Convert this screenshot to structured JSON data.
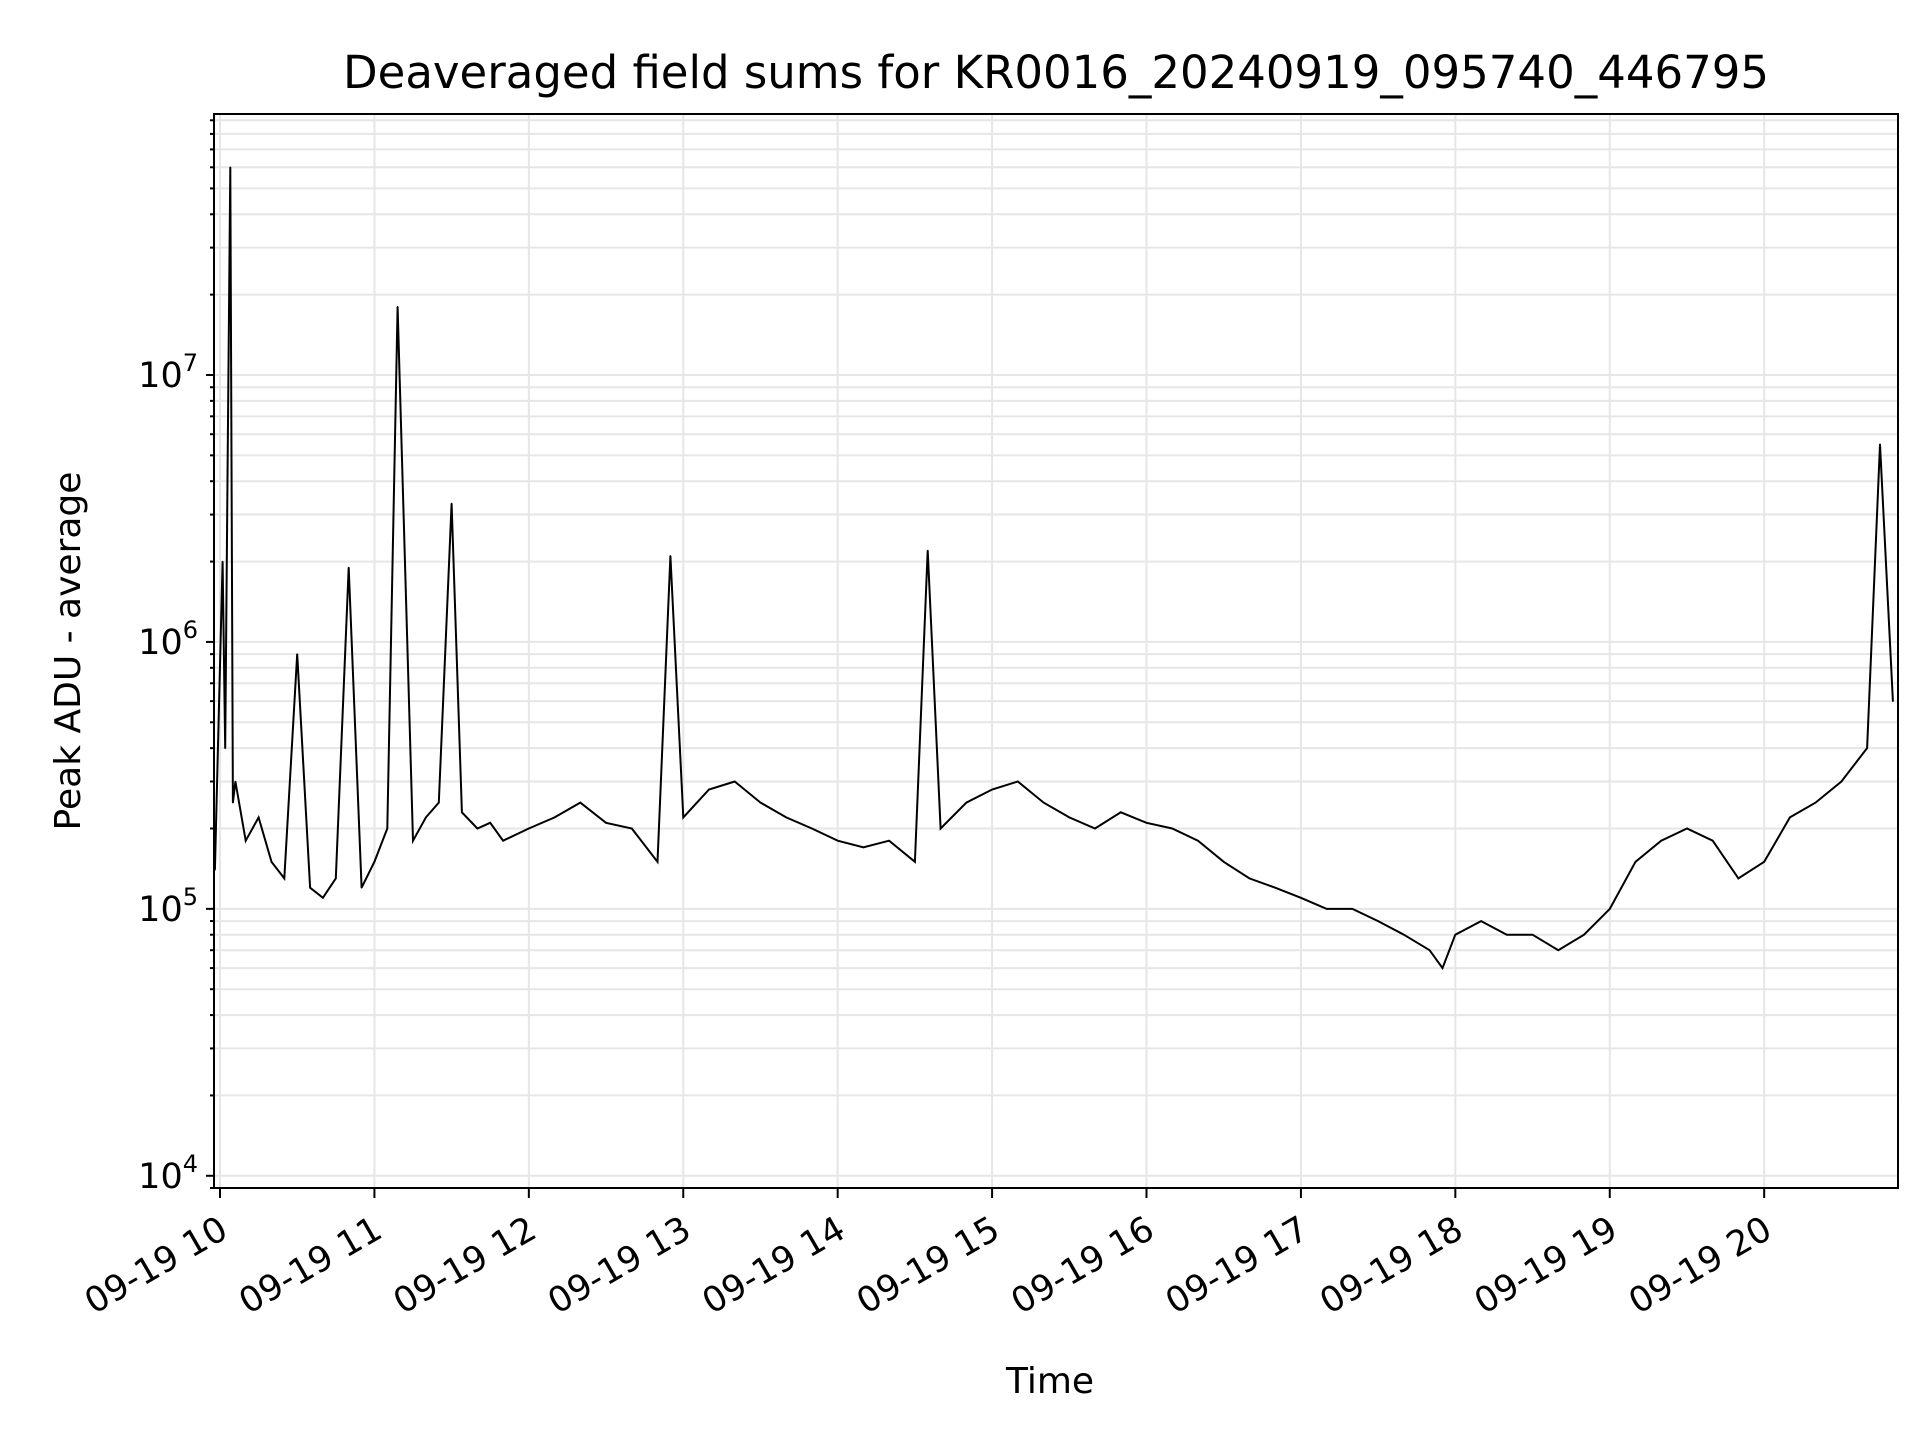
{
  "chart_data": {
    "type": "line",
    "title": "Deaveraged field sums for KR0016_20240919_095740_446795",
    "xlabel": "Time",
    "ylabel": "Peak ADU - average",
    "yscale": "log",
    "ylim": [
      9000,
      95000000
    ],
    "xlim": [
      "2024-09-19 09:57:40",
      "2024-09-19 20:52:00"
    ],
    "grid": true,
    "line_color": "#000000",
    "grid_color": "#e6e6e6",
    "x_ticks": [
      {
        "t": "2024-09-19 10:00",
        "label": "09-19 10"
      },
      {
        "t": "2024-09-19 11:00",
        "label": "09-19 11"
      },
      {
        "t": "2024-09-19 12:00",
        "label": "09-19 12"
      },
      {
        "t": "2024-09-19 13:00",
        "label": "09-19 13"
      },
      {
        "t": "2024-09-19 14:00",
        "label": "09-19 14"
      },
      {
        "t": "2024-09-19 15:00",
        "label": "09-19 15"
      },
      {
        "t": "2024-09-19 16:00",
        "label": "09-19 16"
      },
      {
        "t": "2024-09-19 17:00",
        "label": "09-19 17"
      },
      {
        "t": "2024-09-19 18:00",
        "label": "09-19 18"
      },
      {
        "t": "2024-09-19 19:00",
        "label": "09-19 19"
      },
      {
        "t": "2024-09-19 20:00",
        "label": "09-19 20"
      }
    ],
    "y_ticks": [
      {
        "value": 10000,
        "base": "10",
        "exp": "4"
      },
      {
        "value": 100000,
        "base": "10",
        "exp": "5"
      },
      {
        "value": 1000000,
        "base": "10",
        "exp": "6"
      },
      {
        "value": 10000000,
        "base": "10",
        "exp": "7"
      }
    ],
    "series": [
      {
        "x": [
          "2024-09-19 09:58",
          "2024-09-19 10:01",
          "2024-09-19 10:02",
          "2024-09-19 10:03",
          "2024-09-19 10:04",
          "2024-09-19 10:05",
          "2024-09-19 10:06",
          "2024-09-19 10:10",
          "2024-09-19 10:15",
          "2024-09-19 10:20",
          "2024-09-19 10:25",
          "2024-09-19 10:30",
          "2024-09-19 10:35",
          "2024-09-19 10:40",
          "2024-09-19 10:45",
          "2024-09-19 10:50",
          "2024-09-19 10:55",
          "2024-09-19 11:00",
          "2024-09-19 11:05",
          "2024-09-19 11:09",
          "2024-09-19 11:15",
          "2024-09-19 11:20",
          "2024-09-19 11:25",
          "2024-09-19 11:30",
          "2024-09-19 11:34",
          "2024-09-19 11:40",
          "2024-09-19 11:45",
          "2024-09-19 11:50",
          "2024-09-19 12:00",
          "2024-09-19 12:10",
          "2024-09-19 12:20",
          "2024-09-19 12:30",
          "2024-09-19 12:40",
          "2024-09-19 12:50",
          "2024-09-19 12:55",
          "2024-09-19 13:00",
          "2024-09-19 13:10",
          "2024-09-19 13:20",
          "2024-09-19 13:30",
          "2024-09-19 13:40",
          "2024-09-19 13:50",
          "2024-09-19 14:00",
          "2024-09-19 14:10",
          "2024-09-19 14:20",
          "2024-09-19 14:30",
          "2024-09-19 14:35",
          "2024-09-19 14:40",
          "2024-09-19 14:50",
          "2024-09-19 15:00",
          "2024-09-19 15:10",
          "2024-09-19 15:20",
          "2024-09-19 15:30",
          "2024-09-19 15:40",
          "2024-09-19 15:50",
          "2024-09-19 16:00",
          "2024-09-19 16:10",
          "2024-09-19 16:20",
          "2024-09-19 16:30",
          "2024-09-19 16:40",
          "2024-09-19 16:50",
          "2024-09-19 17:00",
          "2024-09-19 17:10",
          "2024-09-19 17:20",
          "2024-09-19 17:30",
          "2024-09-19 17:40",
          "2024-09-19 17:50",
          "2024-09-19 17:55",
          "2024-09-19 18:00",
          "2024-09-19 18:10",
          "2024-09-19 18:20",
          "2024-09-19 18:30",
          "2024-09-19 18:40",
          "2024-09-19 18:50",
          "2024-09-19 19:00",
          "2024-09-19 19:10",
          "2024-09-19 19:20",
          "2024-09-19 19:30",
          "2024-09-19 19:40",
          "2024-09-19 19:50",
          "2024-09-19 20:00",
          "2024-09-19 20:10",
          "2024-09-19 20:20",
          "2024-09-19 20:30",
          "2024-09-19 20:40",
          "2024-09-19 20:45",
          "2024-09-19 20:50"
        ],
        "y": [
          140000,
          2000000,
          400000,
          5000000,
          60000000,
          250000,
          300000,
          180000,
          220000,
          150000,
          130000,
          900000,
          120000,
          110000,
          130000,
          1900000,
          120000,
          150000,
          200000,
          18000000,
          180000,
          220000,
          250000,
          3300000,
          230000,
          200000,
          210000,
          180000,
          200000,
          220000,
          250000,
          210000,
          200000,
          150000,
          2100000,
          220000,
          280000,
          300000,
          250000,
          220000,
          200000,
          180000,
          170000,
          180000,
          150000,
          2200000,
          200000,
          250000,
          280000,
          300000,
          250000,
          220000,
          200000,
          230000,
          210000,
          200000,
          180000,
          150000,
          130000,
          120000,
          110000,
          100000,
          100000,
          90000,
          80000,
          70000,
          60000,
          80000,
          90000,
          80000,
          80000,
          70000,
          80000,
          100000,
          150000,
          180000,
          200000,
          180000,
          130000,
          150000,
          220000,
          250000,
          300000,
          400000,
          5500000,
          600000
        ]
      }
    ]
  }
}
